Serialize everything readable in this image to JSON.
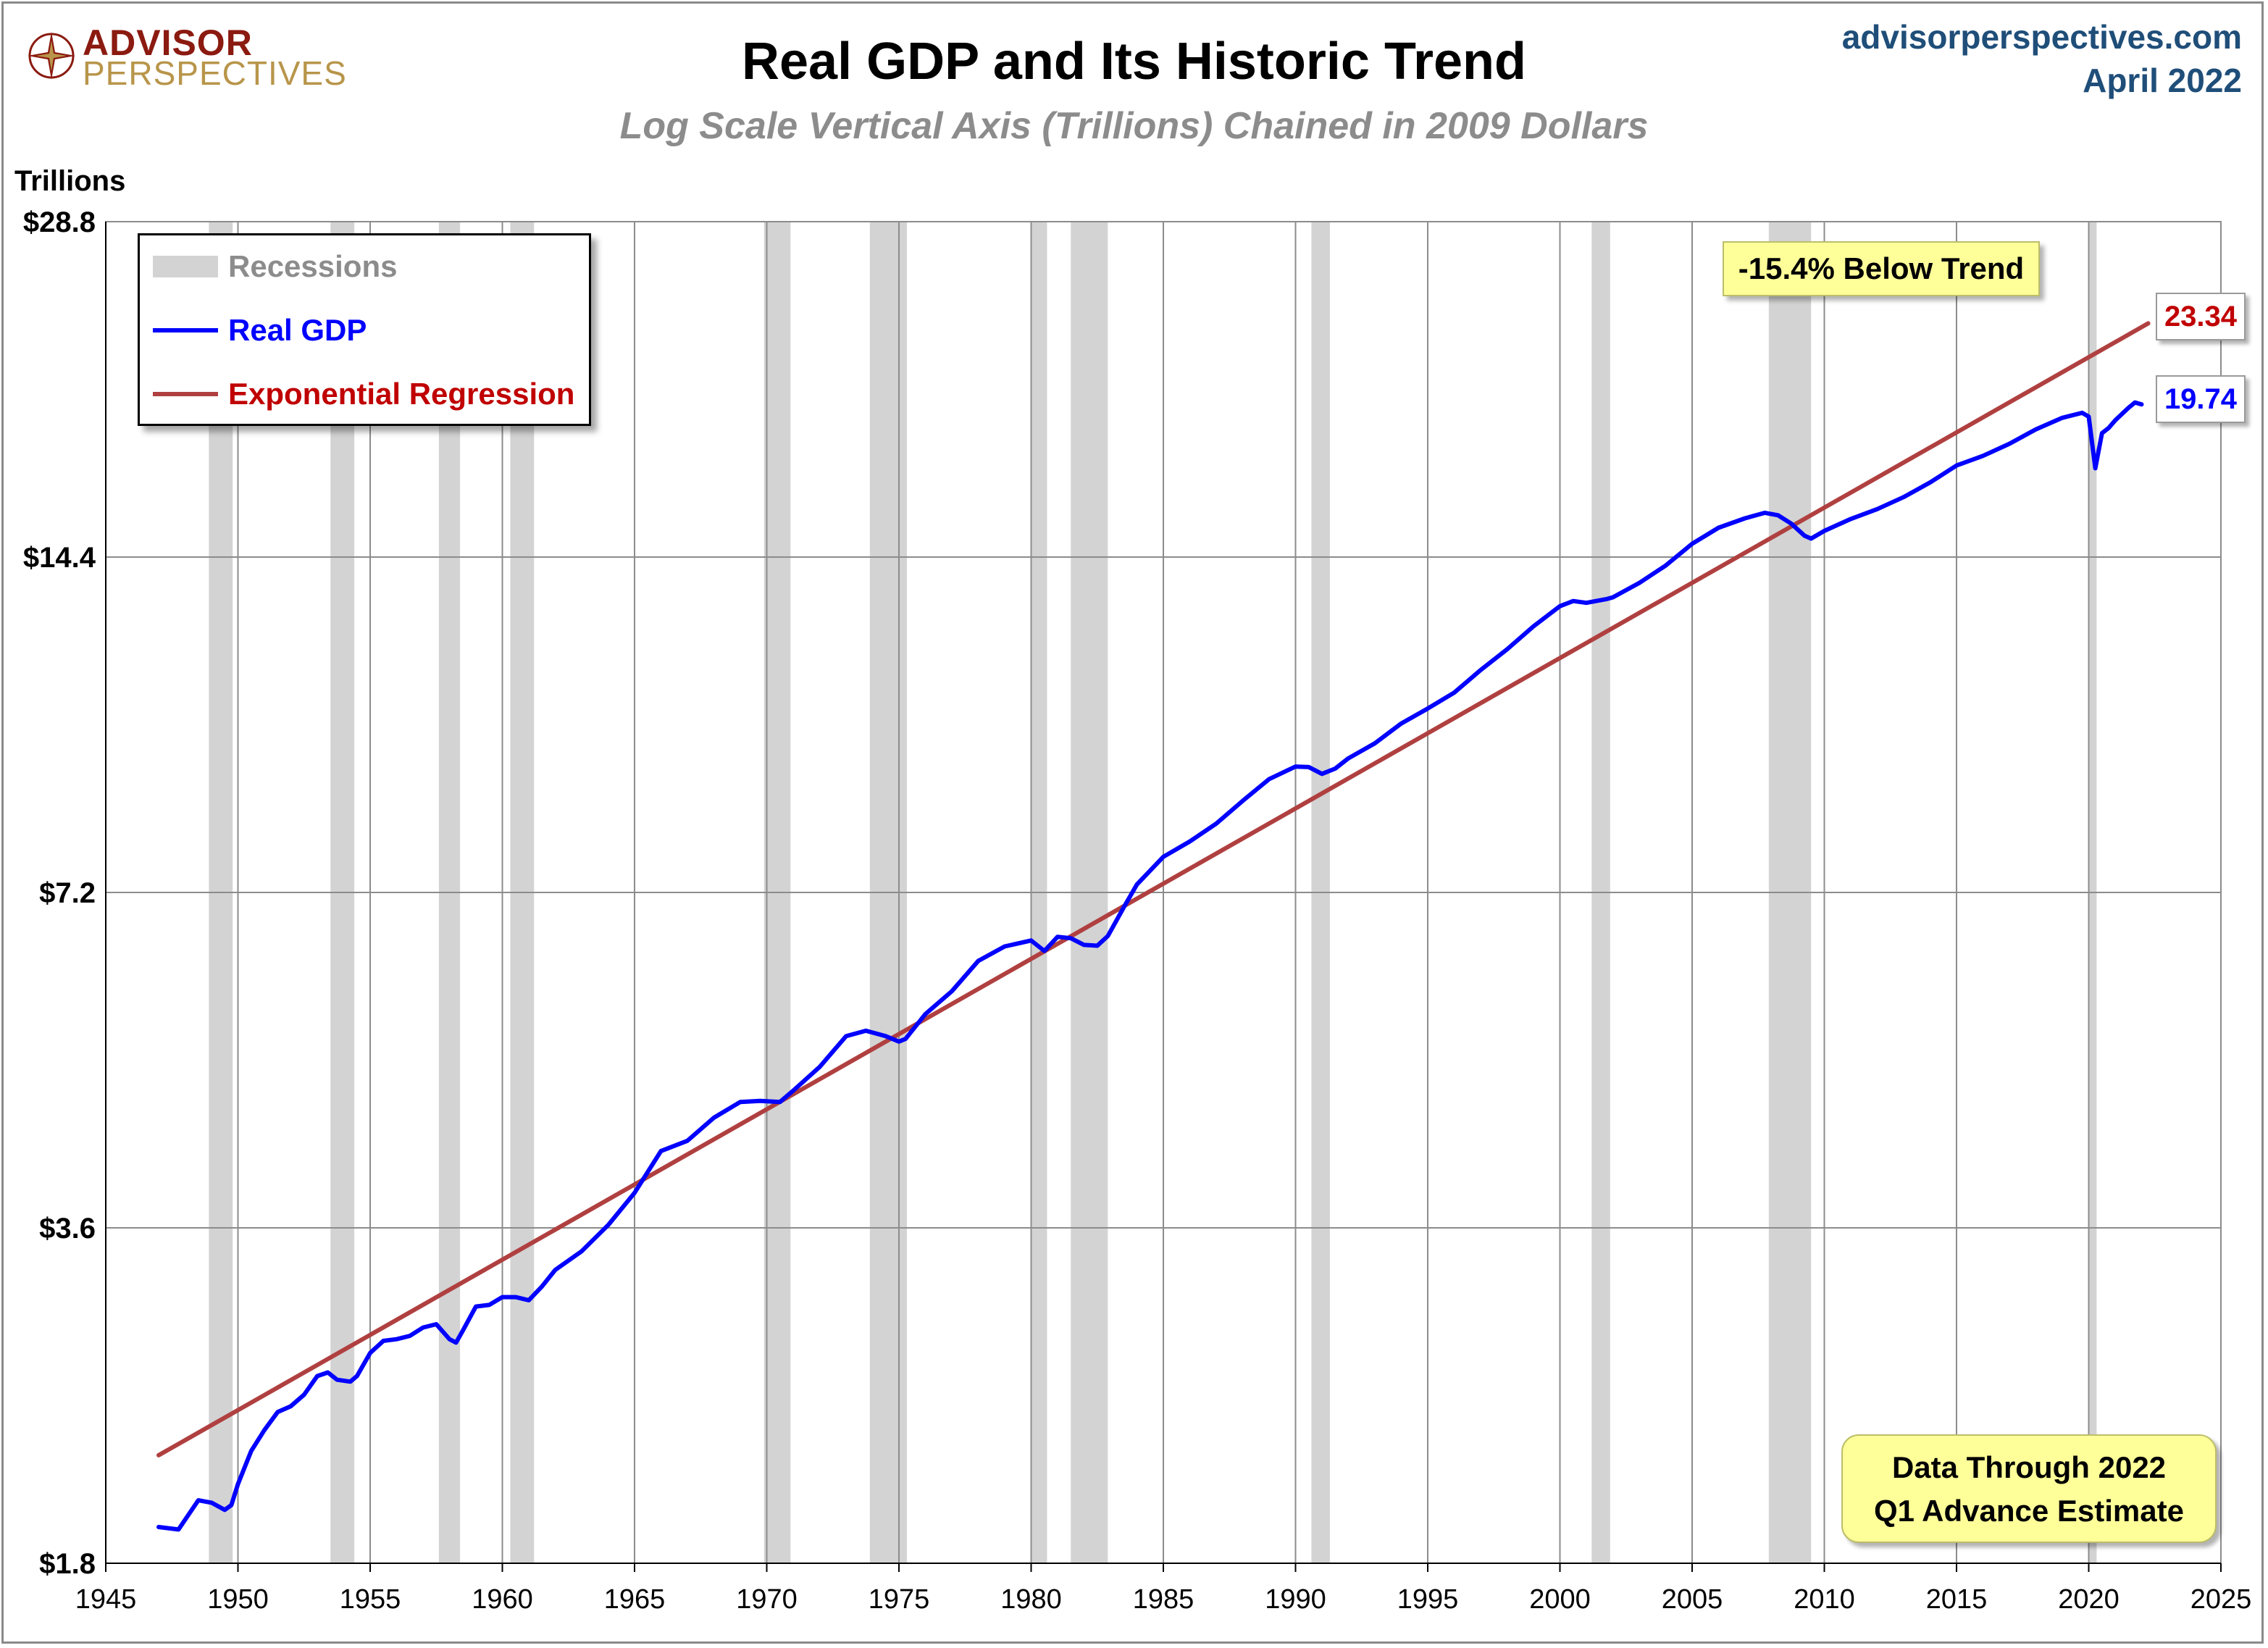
{
  "header": {
    "logo_top": "ADVISOR",
    "logo_bottom": "PERSPECTIVES",
    "site": "advisorperspectives.com",
    "date": "April 2022"
  },
  "annotations": {
    "below_trend": "-15.4% Below Trend",
    "end_trend_value": "23.34",
    "end_gdp_value": "19.74",
    "note_line1": "Data Through 2022",
    "note_line2": "Q1 Advance Estimate"
  },
  "legend": {
    "recessions": "Recessions",
    "real_gdp": "Real GDP",
    "regression": "Exponential Regression"
  },
  "colors": {
    "gdp": "#0000ff",
    "trend": "#b04040",
    "recession": "#d3d3d3",
    "grid": "#8c8c8c",
    "callout": "#ffff99"
  },
  "chart_data": {
    "type": "line",
    "title": "Real GDP and Its Historic Trend",
    "subtitle": "Log Scale Vertical Axis (Trillions) Chained in 2009 Dollars",
    "ylabel": "Trillions",
    "y_scale": "log2",
    "ylim": [
      1.8,
      28.8
    ],
    "xlim": [
      1945,
      2025
    ],
    "x_ticks": [
      1945,
      1950,
      1955,
      1960,
      1965,
      1970,
      1975,
      1980,
      1985,
      1990,
      1995,
      2000,
      2005,
      2010,
      2015,
      2020,
      2025
    ],
    "y_ticks": [
      {
        "value": 1.8,
        "label": "$1.8"
      },
      {
        "value": 3.6,
        "label": "$3.6"
      },
      {
        "value": 7.2,
        "label": "$7.2"
      },
      {
        "value": 14.4,
        "label": "$14.4"
      },
      {
        "value": 28.8,
        "label": "$28.8"
      }
    ],
    "grid": true,
    "legend_position": "top-left",
    "recessions": [
      [
        1948.9,
        1949.8
      ],
      [
        1953.5,
        1954.4
      ],
      [
        1957.6,
        1958.4
      ],
      [
        1960.3,
        1961.2
      ],
      [
        1969.9,
        1970.9
      ],
      [
        1973.9,
        1975.3
      ],
      [
        1980.0,
        1980.6
      ],
      [
        1981.5,
        1982.9
      ],
      [
        1990.6,
        1991.3
      ],
      [
        2001.2,
        2001.9
      ],
      [
        2007.9,
        2009.5
      ],
      [
        2020.0,
        2020.3
      ]
    ],
    "series": [
      {
        "name": "Real GDP",
        "x": [
          1947.0,
          1947.75,
          1948.5,
          1949.0,
          1949.5,
          1949.75,
          1950.0,
          1950.5,
          1951.0,
          1951.5,
          1952.0,
          1952.5,
          1953.0,
          1953.4,
          1953.75,
          1954.25,
          1954.5,
          1955.0,
          1955.5,
          1956.0,
          1956.5,
          1957.0,
          1957.5,
          1958.0,
          1958.25,
          1958.5,
          1959.0,
          1959.5,
          1960.0,
          1960.5,
          1961.0,
          1961.5,
          1962.0,
          1963.0,
          1964.0,
          1965.0,
          1966.0,
          1967.0,
          1968.0,
          1969.0,
          1969.75,
          1970.5,
          1971.0,
          1972.0,
          1973.0,
          1973.75,
          1974.5,
          1975.0,
          1975.25,
          1976.0,
          1977.0,
          1978.0,
          1979.0,
          1980.0,
          1980.5,
          1981.0,
          1981.5,
          1982.0,
          1982.5,
          1982.9,
          1983.5,
          1984.0,
          1985.0,
          1986.0,
          1987.0,
          1988.0,
          1989.0,
          1990.0,
          1990.5,
          1991.0,
          1991.5,
          1992.0,
          1993.0,
          1994.0,
          1995.0,
          1996.0,
          1997.0,
          1998.0,
          1999.0,
          2000.0,
          2000.5,
          2001.0,
          2001.75,
          2002.0,
          2003.0,
          2004.0,
          2005.0,
          2006.0,
          2007.0,
          2007.75,
          2008.25,
          2008.75,
          2009.25,
          2009.5,
          2010.0,
          2011.0,
          2012.0,
          2013.0,
          2014.0,
          2015.0,
          2016.0,
          2017.0,
          2018.0,
          2019.0,
          2019.75,
          2020.0,
          2020.25,
          2020.5,
          2020.75,
          2021.0,
          2021.5,
          2021.75,
          2022.0
        ],
        "values": [
          1.94,
          1.93,
          2.05,
          2.04,
          2.01,
          2.03,
          2.12,
          2.27,
          2.37,
          2.46,
          2.49,
          2.55,
          2.65,
          2.67,
          2.63,
          2.62,
          2.65,
          2.78,
          2.85,
          2.86,
          2.88,
          2.93,
          2.95,
          2.86,
          2.84,
          2.91,
          3.06,
          3.07,
          3.12,
          3.12,
          3.1,
          3.19,
          3.3,
          3.43,
          3.62,
          3.87,
          4.22,
          4.31,
          4.52,
          4.67,
          4.68,
          4.67,
          4.78,
          5.02,
          5.35,
          5.41,
          5.35,
          5.29,
          5.32,
          5.6,
          5.87,
          6.25,
          6.44,
          6.52,
          6.38,
          6.57,
          6.55,
          6.46,
          6.45,
          6.58,
          6.98,
          7.32,
          7.75,
          8.0,
          8.3,
          8.7,
          9.1,
          9.34,
          9.33,
          9.2,
          9.3,
          9.5,
          9.8,
          10.21,
          10.53,
          10.88,
          11.4,
          11.9,
          12.48,
          13.01,
          13.15,
          13.1,
          13.2,
          13.25,
          13.65,
          14.15,
          14.8,
          15.3,
          15.6,
          15.78,
          15.7,
          15.43,
          15.05,
          14.96,
          15.2,
          15.58,
          15.9,
          16.3,
          16.8,
          17.4,
          17.75,
          18.2,
          18.75,
          19.2,
          19.4,
          19.25,
          17.3,
          18.6,
          18.8,
          19.1,
          19.6,
          19.82,
          19.74
        ]
      },
      {
        "name": "Exponential Regression",
        "x": [
          1947.0,
          2022.25
        ],
        "values": [
          2.25,
          23.34
        ]
      }
    ]
  }
}
